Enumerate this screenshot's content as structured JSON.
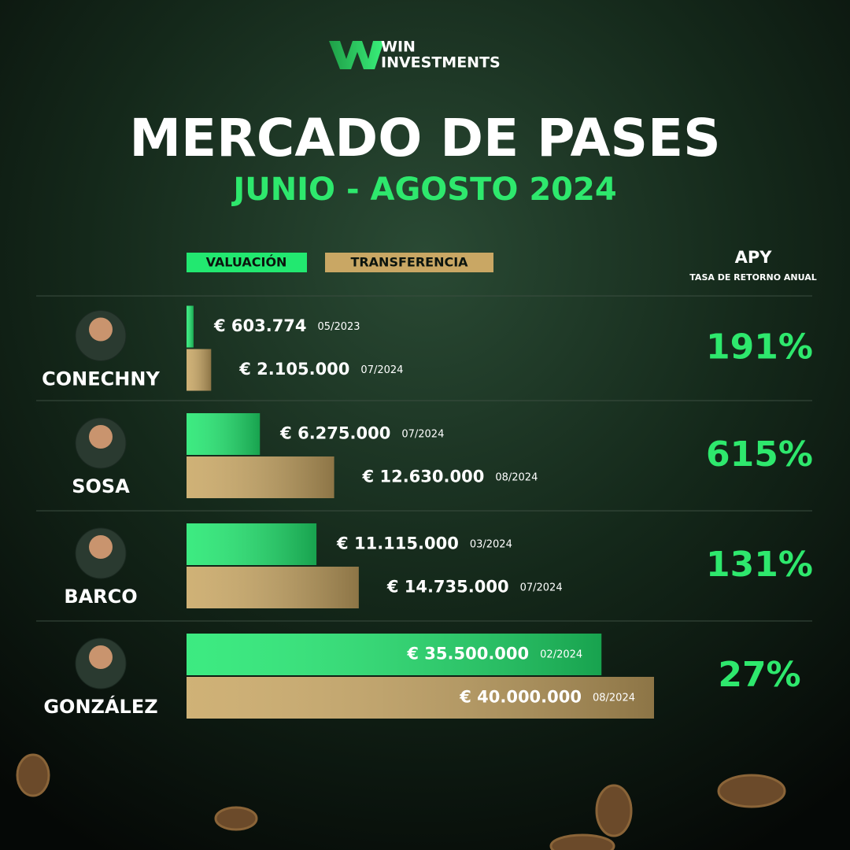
{
  "chart_data": {
    "type": "bar",
    "brand": [
      "WIN",
      "INVESTMENTS"
    ],
    "title": "MERCADO DE PASES",
    "subtitle": "JUNIO - AGOSTO 2024",
    "categories": [
      "CONECHNY",
      "SOSA",
      "BARCO",
      "GONZÁLEZ"
    ],
    "series": [
      {
        "name": "VALUACIÓN",
        "color": "#22e870",
        "values": [
          603774,
          6275000,
          11115000,
          35500000
        ],
        "value_labels": [
          "€ 603.774",
          "€ 6.275.000",
          "€ 11.115.000",
          "€ 35.500.000"
        ],
        "dates": [
          "05/2023",
          "07/2024",
          "03/2024",
          "02/2024"
        ]
      },
      {
        "name": "TRANSFERENCIA",
        "color": "#c9a764",
        "values": [
          2105000,
          12630000,
          14735000,
          40000000
        ],
        "value_labels": [
          "€ 2.105.000",
          "€ 12.630.000",
          "€ 14.735.000",
          "€ 40.000.000"
        ],
        "dates": [
          "07/2024",
          "08/2024",
          "07/2024",
          "08/2024"
        ]
      }
    ],
    "apy_title": "APY",
    "apy_subtitle": "TASA DE RETORNO ANUAL",
    "apy": [
      "191%",
      "615%",
      "131%",
      "27%"
    ]
  }
}
